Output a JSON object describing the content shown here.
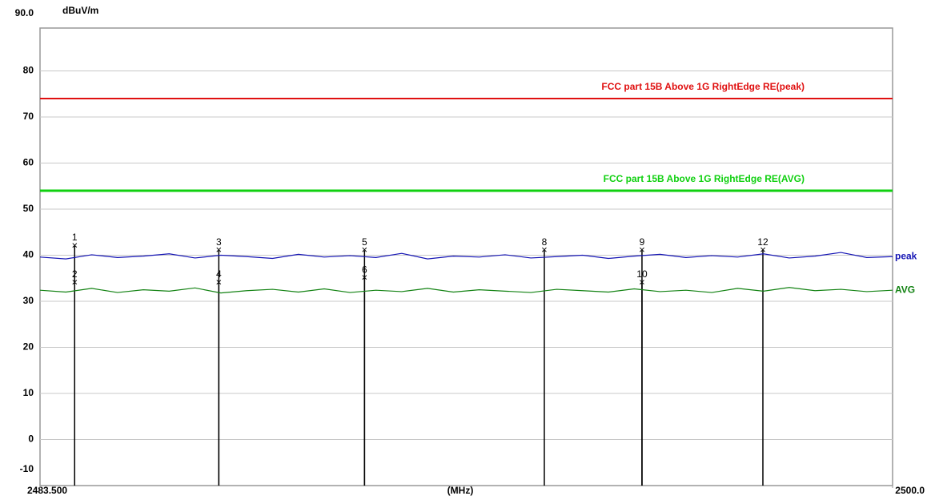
{
  "chart_data": {
    "type": "line",
    "y_label": "dBuV/m",
    "x_label": "(MHz)",
    "xlim": [
      2483.5,
      2500
    ],
    "xticks": [
      {
        "value": 2483.5,
        "label": "2483.500"
      },
      {
        "value": 2500,
        "label": "2500.0"
      }
    ],
    "ylim": [
      -10,
      90
    ],
    "yticks": [
      -10,
      0,
      10,
      20,
      30,
      40,
      50,
      60,
      70,
      80,
      {
        "value": 90,
        "label": "90.0"
      }
    ],
    "grid": true,
    "x": [
      2483.5,
      2484,
      2484.5,
      2485,
      2485.5,
      2486,
      2486.5,
      2487,
      2487.5,
      2488,
      2488.5,
      2489,
      2489.5,
      2490,
      2490.5,
      2491,
      2491.5,
      2492,
      2492.5,
      2493,
      2493.5,
      2494,
      2494.5,
      2495,
      2495.5,
      2496,
      2496.5,
      2497,
      2497.5,
      2498,
      2498.5,
      2499,
      2499.5,
      2500
    ],
    "series": [
      {
        "name": "peak",
        "color": "#1414b4",
        "values": [
          39.6,
          39.2,
          40.1,
          39.5,
          39.8,
          40.3,
          39.4,
          40.0,
          39.7,
          39.3,
          40.2,
          39.6,
          39.9,
          39.5,
          40.4,
          39.2,
          39.8,
          39.6,
          40.1,
          39.4,
          39.7,
          40.0,
          39.3,
          39.8,
          40.2,
          39.5,
          39.9,
          39.6,
          40.3,
          39.4,
          39.8,
          40.6,
          39.5,
          39.7
        ]
      },
      {
        "name": "AVG",
        "color": "#128212",
        "values": [
          32.4,
          32.0,
          32.8,
          31.9,
          32.5,
          32.2,
          32.9,
          31.8,
          32.3,
          32.6,
          32.0,
          32.7,
          31.9,
          32.4,
          32.1,
          32.8,
          32.0,
          32.5,
          32.2,
          31.9,
          32.6,
          32.3,
          32.0,
          32.7,
          32.1,
          32.4,
          31.9,
          32.8,
          32.2,
          33.0,
          32.3,
          32.6,
          32.1,
          32.4
        ]
      }
    ],
    "limits": [
      {
        "label": "FCC part 15B Above 1G RightEdge RE(peak)",
        "value": 74,
        "color": "#e01010"
      },
      {
        "label": "FCC part 15B Above 1G RightEdge RE(AVG)",
        "value": 54,
        "color": "#10d010"
      }
    ],
    "markers": [
      {
        "label": "1",
        "x": 2484.17,
        "value": 42
      },
      {
        "label": "2",
        "x": 2484.17,
        "value": 34
      },
      {
        "label": "3",
        "x": 2486.96,
        "value": 41
      },
      {
        "label": "4",
        "x": 2486.96,
        "value": 34
      },
      {
        "label": "5",
        "x": 2489.78,
        "value": 41
      },
      {
        "label": "6",
        "x": 2489.78,
        "value": 35
      },
      {
        "label": "8",
        "x": 2493.26,
        "value": 41
      },
      {
        "label": "9",
        "x": 2495.15,
        "value": 41
      },
      {
        "label": "10",
        "x": 2495.15,
        "value": 34
      },
      {
        "label": "12",
        "x": 2497.49,
        "value": 41
      }
    ]
  }
}
